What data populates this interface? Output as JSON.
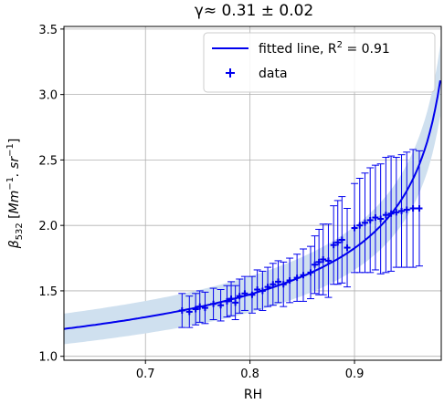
{
  "chart_data": {
    "type": "scatter",
    "title": "γ≈  0.31 ± 0.02",
    "xlabel": "RH",
    "ylabel_parts": {
      "beta": "β",
      "sub": "532",
      "bracket_open": "[",
      "mm": "Mm",
      "exp1": "−1",
      "mid": ". sr",
      "exp2": "−1",
      "bracket_close": "]"
    },
    "xlim": [
      0.622,
      0.983
    ],
    "ylim": [
      0.97,
      3.52
    ],
    "xticks": [
      0.7,
      0.8,
      0.9
    ],
    "yticks": [
      1.0,
      1.5,
      2.0,
      2.5,
      3.0,
      3.5
    ],
    "xtick_labels": [
      "0.7",
      "0.8",
      "0.9"
    ],
    "ytick_labels": [
      "1.0",
      "1.5",
      "2.0",
      "2.5",
      "3.0",
      "3.5"
    ],
    "grid": true,
    "legend_position": "upper-right",
    "legend": {
      "fit_label": "fitted line, R",
      "fit_sup": "2",
      "fit_value": " = 0.91",
      "data_label": "data"
    },
    "colors": {
      "line": "#0000ee",
      "data": "#0000ee",
      "band": "#cfe0ef"
    },
    "fit": {
      "gamma": 0.31,
      "gamma_err": 0.02,
      "r_squared": 0.91
    },
    "data": {
      "x": [
        0.735,
        0.742,
        0.748,
        0.752,
        0.757,
        0.765,
        0.772,
        0.778,
        0.782,
        0.786,
        0.79,
        0.795,
        0.802,
        0.807,
        0.812,
        0.817,
        0.822,
        0.827,
        0.832,
        0.838,
        0.845,
        0.851,
        0.858,
        0.862,
        0.866,
        0.87,
        0.875,
        0.88,
        0.884,
        0.888,
        0.893,
        0.9,
        0.905,
        0.91,
        0.915,
        0.92,
        0.925,
        0.93,
        0.935,
        0.94,
        0.945,
        0.95,
        0.956,
        0.962
      ],
      "y": [
        1.35,
        1.34,
        1.36,
        1.38,
        1.37,
        1.4,
        1.39,
        1.42,
        1.44,
        1.41,
        1.46,
        1.48,
        1.47,
        1.51,
        1.5,
        1.53,
        1.55,
        1.57,
        1.55,
        1.58,
        1.6,
        1.62,
        1.64,
        1.7,
        1.72,
        1.74,
        1.73,
        1.85,
        1.87,
        1.89,
        1.83,
        1.98,
        2.0,
        2.02,
        2.04,
        2.06,
        2.05,
        2.08,
        2.09,
        2.1,
        2.11,
        2.12,
        2.13,
        2.13
      ],
      "yerr": [
        0.13,
        0.12,
        0.12,
        0.12,
        0.12,
        0.12,
        0.12,
        0.12,
        0.13,
        0.13,
        0.13,
        0.13,
        0.14,
        0.15,
        0.15,
        0.15,
        0.16,
        0.16,
        0.17,
        0.17,
        0.18,
        0.2,
        0.2,
        0.22,
        0.25,
        0.27,
        0.28,
        0.3,
        0.32,
        0.33,
        0.3,
        0.34,
        0.36,
        0.38,
        0.4,
        0.4,
        0.42,
        0.44,
        0.44,
        0.42,
        0.43,
        0.44,
        0.45,
        0.44
      ]
    }
  }
}
